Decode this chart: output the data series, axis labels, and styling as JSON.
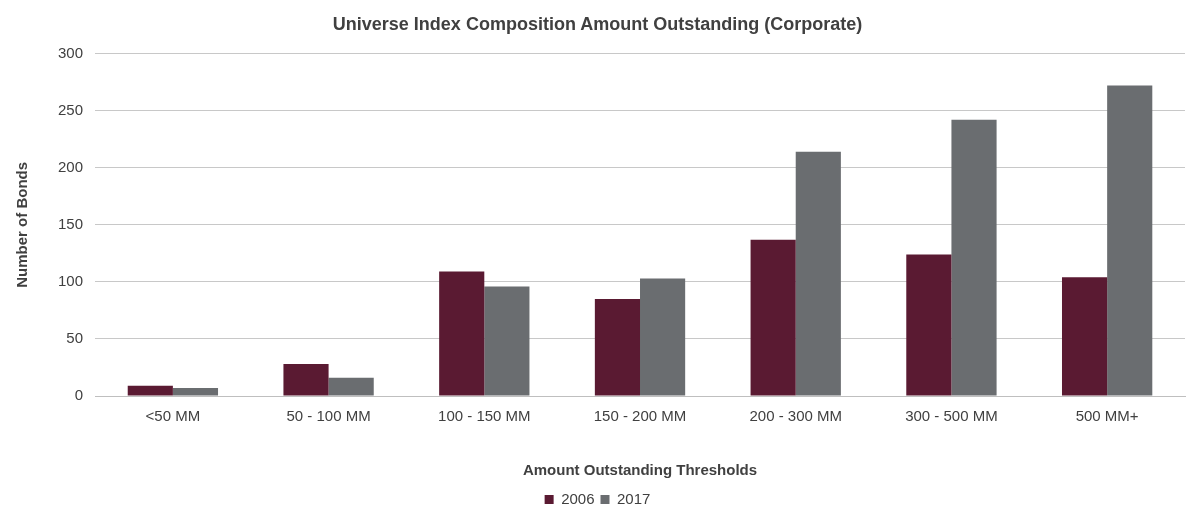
{
  "chart_data": {
    "type": "bar",
    "title": "Universe Index Composition Amount Outstanding (Corporate)",
    "xlabel": "Amount Outstanding Thresholds",
    "ylabel": "Number of Bonds",
    "categories": [
      "<50 MM",
      "50 - 100 MM",
      "100 - 150 MM",
      "150 - 200 MM",
      "200 - 300 MM",
      "300 - 500 MM",
      "500 MM+"
    ],
    "series": [
      {
        "name": "2006",
        "color": "#5a1a32",
        "values": [
          9,
          28,
          109,
          85,
          137,
          124,
          104
        ]
      },
      {
        "name": "2017",
        "color": "#6a6d70",
        "values": [
          7,
          16,
          96,
          103,
          214,
          242,
          272
        ]
      }
    ],
    "ylim": [
      0,
      300
    ],
    "yticks": [
      0,
      50,
      100,
      150,
      200,
      250,
      300
    ],
    "grid": "y",
    "legend": "bottom"
  }
}
